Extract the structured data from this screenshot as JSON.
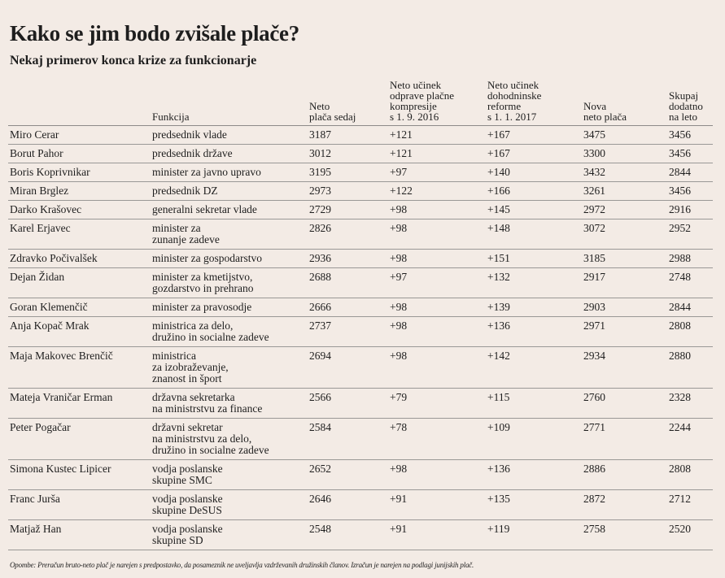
{
  "title": "Kako se jim bodo zvišale plače?",
  "subtitle": "Nekaj primerov konca krize za funkcionarje",
  "columns": [
    "",
    "Funkcija",
    "Neto\nplača sedaj",
    "Neto učinek\nodprave plačne\nkompresije\ns 1. 9. 2016",
    "Neto učinek\ndohodninske\nreforme\ns 1. 1. 2017",
    "Nova\nneto plača",
    "Skupaj\ndodatno\nna leto"
  ],
  "rows": [
    [
      "Miro Cerar",
      "predsednik vlade",
      "3187",
      "+121",
      "+167",
      "3475",
      "3456"
    ],
    [
      "Borut Pahor",
      "predsednik države",
      "3012",
      "+121",
      "+167",
      "3300",
      "3456"
    ],
    [
      "Boris Koprivnikar",
      "minister za javno upravo",
      "3195",
      "+97",
      "+140",
      "3432",
      "2844"
    ],
    [
      "Miran Brglez",
      "predsednik DZ",
      "2973",
      "+122",
      "+166",
      "3261",
      "3456"
    ],
    [
      "Darko Krašovec",
      "generalni sekretar vlade",
      "2729",
      "+98",
      "+145",
      "2972",
      "2916"
    ],
    [
      "Karel Erjavec",
      "minister za\nzunanje zadeve",
      "2826",
      "+98",
      "+148",
      "3072",
      "2952"
    ],
    [
      "Zdravko Počivalšek",
      "minister za gospodarstvo",
      "2936",
      "+98",
      "+151",
      "3185",
      "2988"
    ],
    [
      "Dejan Židan",
      "minister za kmetijstvo,\ngozdarstvo in prehrano",
      "2688",
      "+97",
      "+132",
      "2917",
      "2748"
    ],
    [
      "Goran Klemenčič",
      "minister za pravosodje",
      "2666",
      "+98",
      "+139",
      "2903",
      "2844"
    ],
    [
      "Anja Kopač Mrak",
      "ministrica za delo,\ndružino in socialne zadeve",
      "2737",
      "+98",
      "+136",
      "2971",
      "2808"
    ],
    [
      "Maja Makovec Brenčič",
      "ministrica\nza izobraževanje,\nznanost in šport",
      "2694",
      "+98",
      "+142",
      "2934",
      "2880"
    ],
    [
      "Mateja Vraničar Erman",
      "državna sekretarka\nna ministrstvu za finance",
      "2566",
      "+79",
      "+115",
      "2760",
      "2328"
    ],
    [
      "Peter Pogačar",
      "državni sekretar\nna ministrstvu za delo,\ndružino in socialne zadeve",
      "2584",
      "+78",
      "+109",
      "2771",
      "2244"
    ],
    [
      "Simona Kustec Lipicer",
      "vodja poslanske\nskupine SMC",
      "2652",
      "+98",
      "+136",
      "2886",
      "2808"
    ],
    [
      "Franc Jurša",
      "vodja poslanske\nskupine DeSUS",
      "2646",
      "+91",
      "+135",
      "2872",
      "2712"
    ],
    [
      "Matjaž Han",
      "vodja poslanske\nskupine SD",
      "2548",
      "+91",
      "+119",
      "2758",
      "2520"
    ]
  ],
  "note": "Opombe: Preračun bruto-neto plač je narejen s predpostavko, da posameznik ne uveljavlja vzdrževanih družinskih članov. Izračun je narejen na podlagi junijskih plač.",
  "colors": {
    "background": "#f3ebe5",
    "rule": "#9a9896",
    "text": "#1e1e1e"
  }
}
